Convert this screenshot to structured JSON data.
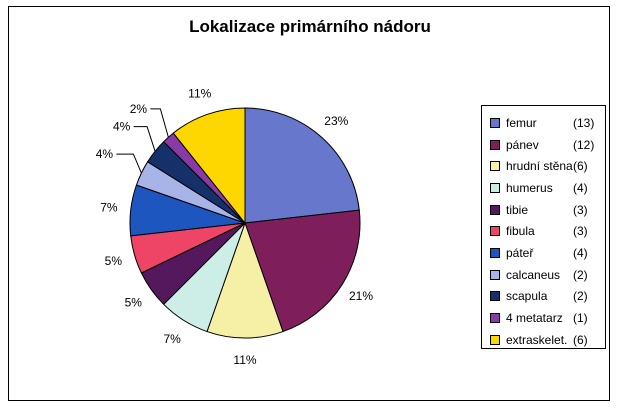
{
  "chart_data": {
    "type": "pie",
    "title": "Lokalizace primárního nádoru",
    "slices": [
      {
        "label": "femur",
        "count": "(13)",
        "value": 13,
        "percent": "23%",
        "color": "#6677cc"
      },
      {
        "label": "pánev",
        "count": "(12)",
        "value": 12,
        "percent": "21%",
        "color": "#7e1f5c"
      },
      {
        "label": "hrudní stěna",
        "count": "(6)",
        "value": 6,
        "percent": "11%",
        "color": "#f5f0a6"
      },
      {
        "label": "humerus",
        "count": "(4)",
        "value": 4,
        "percent": "7%",
        "color": "#cceee6"
      },
      {
        "label": "tibie",
        "count": "(3)",
        "value": 3,
        "percent": "5%",
        "color": "#55185c"
      },
      {
        "label": "fibula",
        "count": "(3)",
        "value": 3,
        "percent": "5%",
        "color": "#ee4466"
      },
      {
        "label": "páteř",
        "count": "(4)",
        "value": 4,
        "percent": "7%",
        "color": "#1e56c0"
      },
      {
        "label": "calcaneus",
        "count": "(2)",
        "value": 2,
        "percent": "4%",
        "color": "#a8b4e8"
      },
      {
        "label": "scapula",
        "count": "(2)",
        "value": 2,
        "percent": "4%",
        "color": "#16306a"
      },
      {
        "label": "4 metatarz",
        "count": "(1)",
        "value": 1,
        "percent": "2%",
        "color": "#8a3aa6"
      },
      {
        "label": "extraskelet.",
        "count": "(6)",
        "value": 6,
        "percent": "11%",
        "color": "#ffd700"
      }
    ],
    "legend_position": "right",
    "start_angle": "12 o'clock",
    "direction": "clockwise"
  }
}
